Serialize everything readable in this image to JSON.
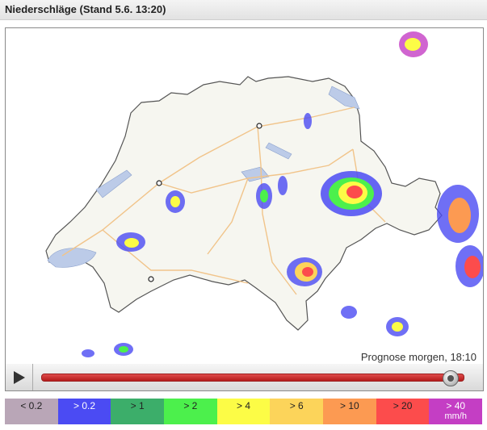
{
  "header": {
    "title": "Niederschläge (Stand 5.6. 13:20)"
  },
  "map": {
    "forecast_label": "Prognose morgen, 18:10"
  },
  "player": {
    "progress": 0.97
  },
  "legend": [
    {
      "label": "< 0.2",
      "unit": "",
      "color": "#b9a6b7",
      "text": "dark"
    },
    {
      "label": "> 0.2",
      "unit": "",
      "color": "#4b4bf3",
      "text": "light"
    },
    {
      "label": "> 1",
      "unit": "",
      "color": "#3cae6a",
      "text": "dark"
    },
    {
      "label": "> 2",
      "unit": "",
      "color": "#4cf04c",
      "text": "dark"
    },
    {
      "label": "> 4",
      "unit": "",
      "color": "#fcfc46",
      "text": "dark"
    },
    {
      "label": "> 6",
      "unit": "",
      "color": "#fcd45a",
      "text": "dark"
    },
    {
      "label": "> 10",
      "unit": "",
      "color": "#fc9a52",
      "text": "dark"
    },
    {
      "label": "> 20",
      "unit": "",
      "color": "#fc4c4c",
      "text": "dark"
    },
    {
      "label": "> 40",
      "unit": "mm/h",
      "color": "#c43ec4",
      "text": "light"
    }
  ]
}
